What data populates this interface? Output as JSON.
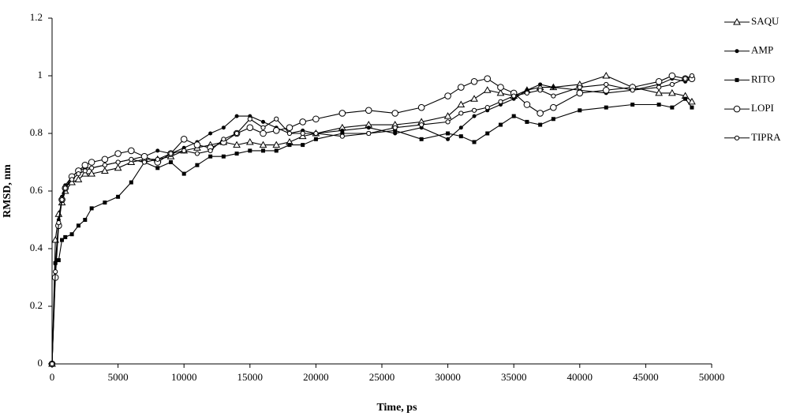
{
  "chart_data": {
    "type": "line",
    "x_label": "Time, ps",
    "y_label": "RMSD, nm",
    "x": [
      0,
      250,
      500,
      750,
      1000,
      1500,
      2000,
      2500,
      3000,
      4000,
      5000,
      6000,
      7000,
      8000,
      9000,
      10000,
      11000,
      12000,
      13000,
      14000,
      15000,
      16000,
      17000,
      18000,
      19000,
      20000,
      22000,
      24000,
      26000,
      28000,
      30000,
      31000,
      32000,
      33000,
      34000,
      35000,
      36000,
      37000,
      38000,
      40000,
      42000,
      44000,
      46000,
      47000,
      48000,
      48500
    ],
    "series": [
      {
        "name": "SAQU",
        "color": "#000000",
        "marker": "triangle-open",
        "values": [
          0,
          0.43,
          0.52,
          0.56,
          0.6,
          0.63,
          0.64,
          0.66,
          0.66,
          0.67,
          0.68,
          0.7,
          0.71,
          0.71,
          0.72,
          0.74,
          0.75,
          0.76,
          0.77,
          0.76,
          0.77,
          0.76,
          0.76,
          0.77,
          0.79,
          0.8,
          0.82,
          0.83,
          0.83,
          0.84,
          0.86,
          0.9,
          0.92,
          0.95,
          0.94,
          0.93,
          0.95,
          0.96,
          0.96,
          0.97,
          1.0,
          0.96,
          0.94,
          0.94,
          0.93,
          0.91
        ]
      },
      {
        "name": "AMP",
        "color": "#000000",
        "marker": "circle-filled",
        "values": [
          0,
          0.35,
          0.5,
          0.58,
          0.62,
          0.65,
          0.67,
          0.68,
          0.68,
          0.69,
          0.7,
          0.71,
          0.72,
          0.74,
          0.73,
          0.75,
          0.77,
          0.8,
          0.82,
          0.86,
          0.86,
          0.84,
          0.82,
          0.8,
          0.81,
          0.8,
          0.81,
          0.82,
          0.8,
          0.82,
          0.78,
          0.82,
          0.86,
          0.88,
          0.9,
          0.92,
          0.95,
          0.97,
          0.96,
          0.95,
          0.94,
          0.95,
          0.97,
          0.99,
          0.98,
          0.99
        ]
      },
      {
        "name": "RITO",
        "color": "#000000",
        "marker": "square-filled",
        "values": [
          0,
          0.35,
          0.36,
          0.43,
          0.44,
          0.45,
          0.48,
          0.5,
          0.54,
          0.56,
          0.58,
          0.63,
          0.7,
          0.68,
          0.7,
          0.66,
          0.69,
          0.72,
          0.72,
          0.73,
          0.74,
          0.74,
          0.74,
          0.76,
          0.76,
          0.78,
          0.8,
          0.8,
          0.81,
          0.78,
          0.8,
          0.79,
          0.77,
          0.8,
          0.83,
          0.86,
          0.84,
          0.83,
          0.85,
          0.88,
          0.89,
          0.9,
          0.9,
          0.89,
          0.92,
          0.89
        ]
      },
      {
        "name": "LOPI",
        "color": "#000000",
        "marker": "circle-open-large",
        "values": [
          0,
          0.3,
          0.48,
          0.57,
          0.61,
          0.65,
          0.67,
          0.69,
          0.7,
          0.71,
          0.73,
          0.74,
          0.72,
          0.7,
          0.73,
          0.78,
          0.76,
          0.75,
          0.77,
          0.8,
          0.82,
          0.8,
          0.81,
          0.82,
          0.84,
          0.85,
          0.87,
          0.88,
          0.87,
          0.89,
          0.93,
          0.96,
          0.98,
          0.99,
          0.96,
          0.94,
          0.9,
          0.87,
          0.89,
          0.94,
          0.95,
          0.96,
          0.98,
          1.0,
          0.99,
          0.99
        ]
      },
      {
        "name": "TIPRA",
        "color": "#000000",
        "marker": "circle-open-small",
        "values": [
          0,
          0.32,
          0.49,
          0.57,
          0.61,
          0.64,
          0.66,
          0.67,
          0.68,
          0.69,
          0.7,
          0.71,
          0.7,
          0.71,
          0.73,
          0.74,
          0.73,
          0.74,
          0.78,
          0.8,
          0.85,
          0.82,
          0.85,
          0.8,
          0.8,
          0.8,
          0.79,
          0.8,
          0.82,
          0.83,
          0.84,
          0.87,
          0.88,
          0.89,
          0.91,
          0.93,
          0.94,
          0.95,
          0.93,
          0.96,
          0.97,
          0.95,
          0.96,
          0.97,
          0.99,
          1.0
        ]
      }
    ],
    "xlim": [
      0,
      50000
    ],
    "xticks": [
      0,
      5000,
      10000,
      15000,
      20000,
      25000,
      30000,
      35000,
      40000,
      45000,
      50000
    ],
    "ylim": [
      0,
      1.2
    ],
    "yticks": [
      0,
      0.2,
      0.4,
      0.6,
      0.8,
      1,
      1.2
    ],
    "grid": false,
    "legend": "right"
  }
}
